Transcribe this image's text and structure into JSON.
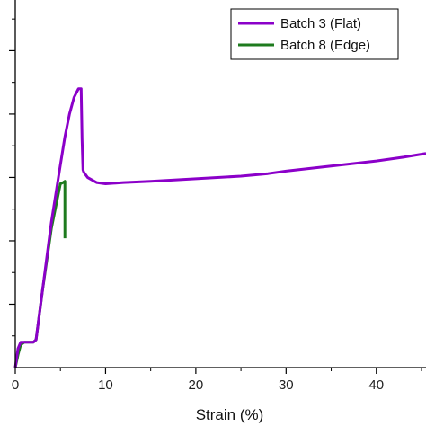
{
  "chart_data": {
    "type": "line",
    "xlabel": "Strain (%)",
    "ylabel": "",
    "xlim": [
      0,
      45.5
    ],
    "ylim": [
      0,
      29
    ],
    "x_ticks": [
      0,
      10,
      20,
      30,
      40
    ],
    "x_minor_ticks": [
      5,
      15,
      25,
      35,
      45
    ],
    "y_ticks": [
      5,
      10,
      15,
      20,
      25
    ],
    "y_minor_ticks": [
      2.5,
      7.5,
      12.5,
      17.5,
      22.5,
      27.5
    ],
    "grid": false,
    "legend_position": "top-right",
    "series": [
      {
        "name": "Batch 3 (Flat)",
        "color": "#8B00C9",
        "x": [
          0,
          0.3,
          0.6,
          1.0,
          1.5,
          2.0,
          2.3,
          3.0,
          4.0,
          5.0,
          5.5,
          6.0,
          6.5,
          7.0,
          7.3,
          7.4,
          7.5,
          7.6,
          8.0,
          9.0,
          10.0,
          12.0,
          15.0,
          20.0,
          25.0,
          28.0,
          30.0,
          35.0,
          40.0,
          43.0,
          45.5
        ],
        "y": [
          0,
          1.5,
          2.0,
          2.0,
          2.0,
          2.0,
          2.2,
          6.0,
          11.5,
          16.0,
          18.2,
          20.0,
          21.3,
          22.0,
          22.0,
          18.0,
          15.6,
          15.4,
          15.0,
          14.6,
          14.5,
          14.6,
          14.7,
          14.9,
          15.1,
          15.3,
          15.5,
          15.9,
          16.3,
          16.6,
          16.9
        ]
      },
      {
        "name": "Batch 8 (Edge)",
        "color": "#1E7B1E",
        "x": [
          0,
          0.3,
          0.6,
          1.0,
          1.5,
          2.0,
          2.3,
          3.0,
          4.0,
          5.0,
          5.3,
          5.5,
          5.5
        ],
        "y": [
          0,
          1.0,
          1.8,
          2.0,
          2.0,
          2.0,
          2.2,
          6.0,
          11.0,
          14.5,
          14.6,
          14.7,
          10.2
        ]
      }
    ]
  }
}
